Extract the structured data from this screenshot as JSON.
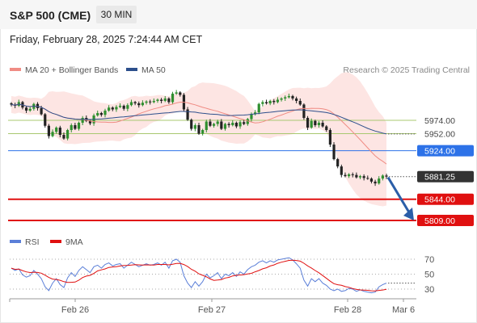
{
  "header": {
    "title": "S&P 500 (CME)",
    "timeframe": "30 MIN"
  },
  "datetime": "Friday, February 28, 2025 7:24:44 AM CET",
  "legend": {
    "bollinger": "MA 20 + Bollinger Bands",
    "ma50": "MA 50",
    "source": "Research © 2025 Trading Central"
  },
  "rsi_legend": {
    "rsi": "RSI",
    "ma": "9MA"
  },
  "colors": {
    "bollinger": "#f08c84",
    "band_fill": "#fde4e2",
    "ma50": "#2c4f8c",
    "up": "#2f8f2f",
    "down": "#222222",
    "resistance_green": "#a8c870",
    "pivot_blue": "#2d72e8",
    "support_red": "#e01010",
    "arrow": "#2b5ea8",
    "rsi": "#5b7fd8",
    "rsi_ma": "#e01010"
  },
  "chart_data": [
    {
      "type": "candlestick",
      "title": "S&P 500 (CME)",
      "interval": "30 MIN",
      "x_ticks": [
        "Feb 26",
        "Feb 27",
        "Feb 28",
        "Mar 6"
      ],
      "ylim": [
        5790,
        6045
      ],
      "levels": [
        {
          "value": 5974.0,
          "label": "5974.00",
          "kind": "resistance"
        },
        {
          "value": 5952.0,
          "label": "5952.00",
          "kind": "resistance"
        },
        {
          "value": 5924.0,
          "label": "5924.00",
          "kind": "pivot"
        },
        {
          "value": 5881.25,
          "label": "5881.25",
          "kind": "last"
        },
        {
          "value": 5844.0,
          "label": "5844.00",
          "kind": "support"
        },
        {
          "value": 5809.0,
          "label": "5809.00",
          "kind": "support"
        }
      ],
      "close": [
        6000,
        5998,
        6004,
        5995,
        5990,
        5993,
        6001,
        5994,
        5984,
        5965,
        5948,
        5955,
        5962,
        5950,
        5944,
        5958,
        5966,
        5960,
        5970,
        5978,
        5973,
        5969,
        5982,
        5986,
        5983,
        5990,
        5995,
        5992,
        5996,
        5998,
        5993,
        5999,
        6004,
        6002,
        5999,
        6003,
        6005,
        6004,
        6006,
        6008,
        6006,
        6010,
        6004,
        6018,
        6020,
        6016,
        5992,
        5975,
        5960,
        5966,
        5952,
        5958,
        5972,
        5965,
        5968,
        5972,
        5960,
        5968,
        5966,
        5970,
        5964,
        5971,
        5968,
        5976,
        5984,
        5987,
        6001,
        6004,
        6002,
        6006,
        6004,
        6008,
        6010,
        6012,
        6014,
        6010,
        6006,
        6000,
        5978,
        5962,
        5973,
        5966,
        5970,
        5964,
        5958,
        5934,
        5910,
        5898,
        5884,
        5882,
        5885,
        5884,
        5880,
        5882,
        5879,
        5878,
        5873,
        5870,
        5878,
        5883,
        5881.25
      ],
      "bollinger": {
        "ma20": "derived",
        "band_shape": "shaded"
      },
      "forecast_arrow": {
        "from": 5881.25,
        "to": 5809.0
      }
    },
    {
      "type": "line",
      "title": "RSI",
      "series": [
        {
          "name": "RSI"
        },
        {
          "name": "9MA"
        }
      ],
      "y_ticks": [
        70,
        50,
        30
      ],
      "ylim": [
        20,
        80
      ],
      "rsi": [
        58,
        55,
        57,
        49,
        46,
        48,
        55,
        50,
        44,
        33,
        28,
        38,
        44,
        36,
        32,
        45,
        52,
        47,
        55,
        60,
        56,
        52,
        60,
        62,
        58,
        63,
        65,
        61,
        63,
        64,
        58,
        62,
        66,
        63,
        60,
        62,
        64,
        62,
        63,
        65,
        62,
        66,
        58,
        68,
        70,
        66,
        48,
        38,
        32,
        40,
        34,
        40,
        50,
        45,
        48,
        52,
        44,
        50,
        48,
        52,
        47,
        53,
        50,
        56,
        60,
        62,
        66,
        68,
        65,
        68,
        66,
        69,
        70,
        71,
        72,
        69,
        64,
        58,
        42,
        34,
        44,
        40,
        44,
        38,
        35,
        30,
        28,
        30,
        27,
        28,
        31,
        30,
        27,
        29,
        27,
        26,
        25,
        26,
        33,
        36,
        38
      ]
    }
  ]
}
